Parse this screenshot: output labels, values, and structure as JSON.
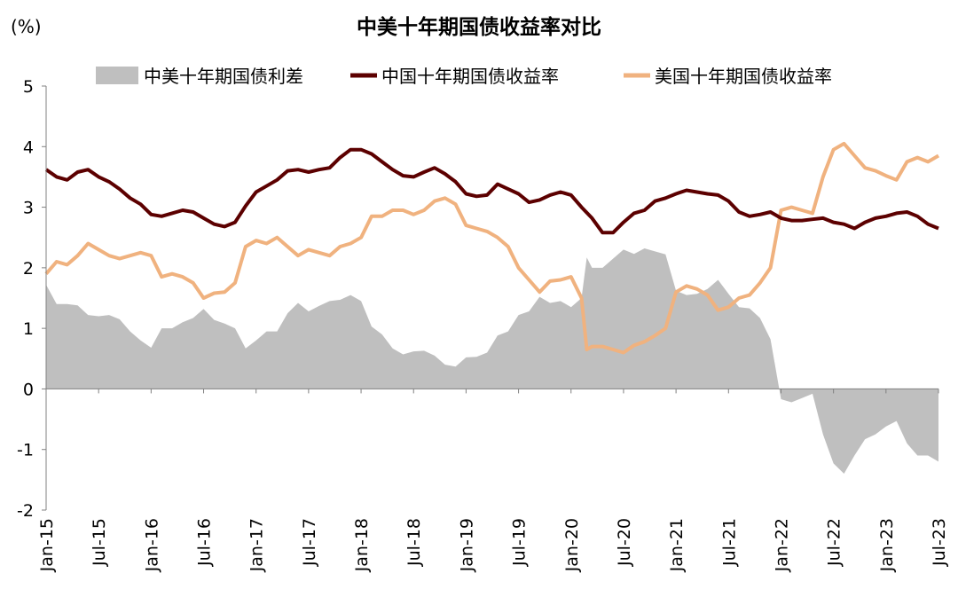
{
  "chart_data": {
    "type": "line",
    "title": "中美十年期国债收益率对比",
    "unit_label": "(%)",
    "ylim": [
      -2,
      5
    ],
    "yticks": [
      "5",
      "4",
      "3",
      "2",
      "1",
      "0",
      "-1",
      "-2"
    ],
    "ytick_values": [
      5,
      4,
      3,
      2,
      1,
      0,
      -1,
      -2
    ],
    "xlim": [
      2015.0,
      2023.5
    ],
    "xticks": [
      {
        "label": "Jan-15",
        "t": 2015.0
      },
      {
        "label": "Jul-15",
        "t": 2015.5
      },
      {
        "label": "Jan-16",
        "t": 2016.0
      },
      {
        "label": "Jul-16",
        "t": 2016.5
      },
      {
        "label": "Jan-17",
        "t": 2017.0
      },
      {
        "label": "Jul-17",
        "t": 2017.5
      },
      {
        "label": "Jan-18",
        "t": 2018.0
      },
      {
        "label": "Jul-18",
        "t": 2018.5
      },
      {
        "label": "Jan-19",
        "t": 2019.0
      },
      {
        "label": "Jul-19",
        "t": 2019.5
      },
      {
        "label": "Jan-20",
        "t": 2020.0
      },
      {
        "label": "Jul-20",
        "t": 2020.5
      },
      {
        "label": "Jan-21",
        "t": 2021.0
      },
      {
        "label": "Jul-21",
        "t": 2021.5
      },
      {
        "label": "Jan-22",
        "t": 2022.0
      },
      {
        "label": "Jul-22",
        "t": 2022.5
      },
      {
        "label": "Jan-23",
        "t": 2023.0
      },
      {
        "label": "Jul-23",
        "t": 2023.5
      }
    ],
    "legend": [
      "中美十年期国债利差",
      "中国十年期国债收益率",
      "美国十年期国债收益率"
    ],
    "colors": {
      "spread": "#bfbfbf",
      "china": "#5c0000",
      "us": "#f0b27f"
    },
    "series": [
      {
        "name": "中国十年期国债收益率",
        "x": [
          2015.0,
          2015.1,
          2015.2,
          2015.3,
          2015.4,
          2015.5,
          2015.6,
          2015.7,
          2015.8,
          2015.9,
          2016.0,
          2016.1,
          2016.2,
          2016.3,
          2016.4,
          2016.5,
          2016.6,
          2016.7,
          2016.8,
          2016.9,
          2017.0,
          2017.1,
          2017.2,
          2017.3,
          2017.4,
          2017.5,
          2017.6,
          2017.7,
          2017.8,
          2017.9,
          2018.0,
          2018.1,
          2018.2,
          2018.3,
          2018.4,
          2018.5,
          2018.6,
          2018.7,
          2018.8,
          2018.9,
          2019.0,
          2019.1,
          2019.2,
          2019.3,
          2019.4,
          2019.5,
          2019.6,
          2019.7,
          2019.8,
          2019.9,
          2020.0,
          2020.1,
          2020.2,
          2020.3,
          2020.4,
          2020.5,
          2020.6,
          2020.7,
          2020.8,
          2020.9,
          2021.0,
          2021.1,
          2021.2,
          2021.3,
          2021.4,
          2021.5,
          2021.6,
          2021.7,
          2021.8,
          2021.9,
          2022.0,
          2022.1,
          2022.2,
          2022.3,
          2022.4,
          2022.5,
          2022.6,
          2022.7,
          2022.8,
          2022.9,
          2023.0,
          2023.1,
          2023.2,
          2023.3,
          2023.4,
          2023.5
        ],
        "values": [
          3.62,
          3.5,
          3.45,
          3.58,
          3.62,
          3.5,
          3.42,
          3.3,
          3.15,
          3.05,
          2.88,
          2.85,
          2.9,
          2.95,
          2.92,
          2.82,
          2.72,
          2.68,
          2.75,
          3.02,
          3.25,
          3.35,
          3.45,
          3.6,
          3.62,
          3.58,
          3.62,
          3.65,
          3.82,
          3.95,
          3.95,
          3.88,
          3.75,
          3.62,
          3.52,
          3.5,
          3.58,
          3.65,
          3.55,
          3.42,
          3.22,
          3.18,
          3.2,
          3.38,
          3.3,
          3.22,
          3.08,
          3.12,
          3.2,
          3.25,
          3.2,
          3.0,
          2.82,
          2.58,
          2.58,
          2.75,
          2.9,
          2.95,
          3.1,
          3.15,
          3.22,
          3.28,
          3.25,
          3.22,
          3.2,
          3.1,
          2.92,
          2.85,
          2.88,
          2.92,
          2.82,
          2.78,
          2.78,
          2.8,
          2.82,
          2.75,
          2.72,
          2.65,
          2.75,
          2.82,
          2.85,
          2.9,
          2.92,
          2.85,
          2.72,
          2.65
        ]
      },
      {
        "name": "美国十年期国债收益率",
        "x": [
          2015.0,
          2015.1,
          2015.2,
          2015.3,
          2015.4,
          2015.5,
          2015.6,
          2015.7,
          2015.8,
          2015.9,
          2016.0,
          2016.1,
          2016.2,
          2016.3,
          2016.4,
          2016.5,
          2016.6,
          2016.7,
          2016.8,
          2016.9,
          2017.0,
          2017.1,
          2017.2,
          2017.3,
          2017.4,
          2017.5,
          2017.6,
          2017.7,
          2017.8,
          2017.9,
          2018.0,
          2018.1,
          2018.2,
          2018.3,
          2018.4,
          2018.5,
          2018.6,
          2018.7,
          2018.8,
          2018.9,
          2019.0,
          2019.1,
          2019.2,
          2019.3,
          2019.4,
          2019.5,
          2019.6,
          2019.7,
          2019.8,
          2019.9,
          2020.0,
          2020.1,
          2020.15,
          2020.2,
          2020.3,
          2020.4,
          2020.5,
          2020.6,
          2020.7,
          2020.8,
          2020.9,
          2021.0,
          2021.1,
          2021.2,
          2021.3,
          2021.4,
          2021.5,
          2021.6,
          2021.7,
          2021.8,
          2021.9,
          2022.0,
          2022.1,
          2022.2,
          2022.3,
          2022.4,
          2022.5,
          2022.6,
          2022.7,
          2022.8,
          2022.9,
          2023.0,
          2023.1,
          2023.2,
          2023.3,
          2023.4,
          2023.5
        ],
        "values": [
          1.9,
          2.1,
          2.05,
          2.2,
          2.4,
          2.3,
          2.2,
          2.15,
          2.2,
          2.25,
          2.2,
          1.85,
          1.9,
          1.85,
          1.75,
          1.5,
          1.58,
          1.6,
          1.75,
          2.35,
          2.45,
          2.4,
          2.5,
          2.35,
          2.2,
          2.3,
          2.25,
          2.2,
          2.35,
          2.4,
          2.5,
          2.85,
          2.85,
          2.95,
          2.95,
          2.88,
          2.95,
          3.1,
          3.15,
          3.05,
          2.7,
          2.65,
          2.6,
          2.5,
          2.35,
          2.0,
          1.8,
          1.6,
          1.78,
          1.8,
          1.85,
          1.5,
          0.65,
          0.7,
          0.7,
          0.65,
          0.6,
          0.72,
          0.78,
          0.88,
          1.0,
          1.6,
          1.7,
          1.65,
          1.55,
          1.3,
          1.35,
          1.5,
          1.55,
          1.75,
          2.0,
          2.95,
          3.0,
          2.95,
          2.9,
          3.5,
          3.95,
          4.05,
          3.85,
          3.65,
          3.6,
          3.52,
          3.45,
          3.75,
          3.82,
          3.75,
          3.85
        ]
      },
      {
        "name": "中美十年期国债利差",
        "x": [
          2015.0,
          2015.1,
          2015.2,
          2015.3,
          2015.4,
          2015.5,
          2015.6,
          2015.7,
          2015.8,
          2015.9,
          2016.0,
          2016.1,
          2016.2,
          2016.3,
          2016.4,
          2016.5,
          2016.6,
          2016.7,
          2016.8,
          2016.9,
          2017.0,
          2017.1,
          2017.2,
          2017.3,
          2017.4,
          2017.5,
          2017.6,
          2017.7,
          2017.8,
          2017.9,
          2018.0,
          2018.1,
          2018.2,
          2018.3,
          2018.4,
          2018.5,
          2018.6,
          2018.7,
          2018.8,
          2018.9,
          2019.0,
          2019.1,
          2019.2,
          2019.3,
          2019.4,
          2019.5,
          2019.6,
          2019.7,
          2019.8,
          2019.9,
          2020.0,
          2020.1,
          2020.15,
          2020.2,
          2020.3,
          2020.4,
          2020.5,
          2020.6,
          2020.7,
          2020.8,
          2020.9,
          2021.0,
          2021.1,
          2021.2,
          2021.3,
          2021.4,
          2021.5,
          2021.6,
          2021.7,
          2021.8,
          2021.9,
          2022.0,
          2022.1,
          2022.2,
          2022.3,
          2022.4,
          2022.5,
          2022.6,
          2022.7,
          2022.8,
          2022.9,
          2023.0,
          2023.1,
          2023.2,
          2023.3,
          2023.4,
          2023.5
        ],
        "values": [
          1.72,
          1.4,
          1.4,
          1.38,
          1.22,
          1.2,
          1.22,
          1.15,
          0.95,
          0.8,
          0.68,
          1.0,
          1.0,
          1.1,
          1.17,
          1.32,
          1.14,
          1.08,
          1.0,
          0.67,
          0.8,
          0.95,
          0.95,
          1.25,
          1.42,
          1.28,
          1.37,
          1.45,
          1.47,
          1.55,
          1.45,
          1.03,
          0.9,
          0.67,
          0.57,
          0.62,
          0.63,
          0.55,
          0.4,
          0.37,
          0.52,
          0.53,
          0.6,
          0.88,
          0.95,
          1.22,
          1.28,
          1.52,
          1.42,
          1.45,
          1.35,
          1.5,
          2.17,
          2.0,
          2.0,
          2.15,
          2.3,
          2.23,
          2.32,
          2.27,
          2.22,
          1.62,
          1.55,
          1.57,
          1.65,
          1.8,
          1.57,
          1.35,
          1.33,
          1.17,
          0.82,
          -0.17,
          -0.22,
          -0.15,
          -0.08,
          -0.75,
          -1.23,
          -1.4,
          -1.1,
          -0.83,
          -0.75,
          -0.62,
          -0.53,
          -0.9,
          -1.1,
          -1.1,
          -1.2
        ]
      }
    ]
  }
}
